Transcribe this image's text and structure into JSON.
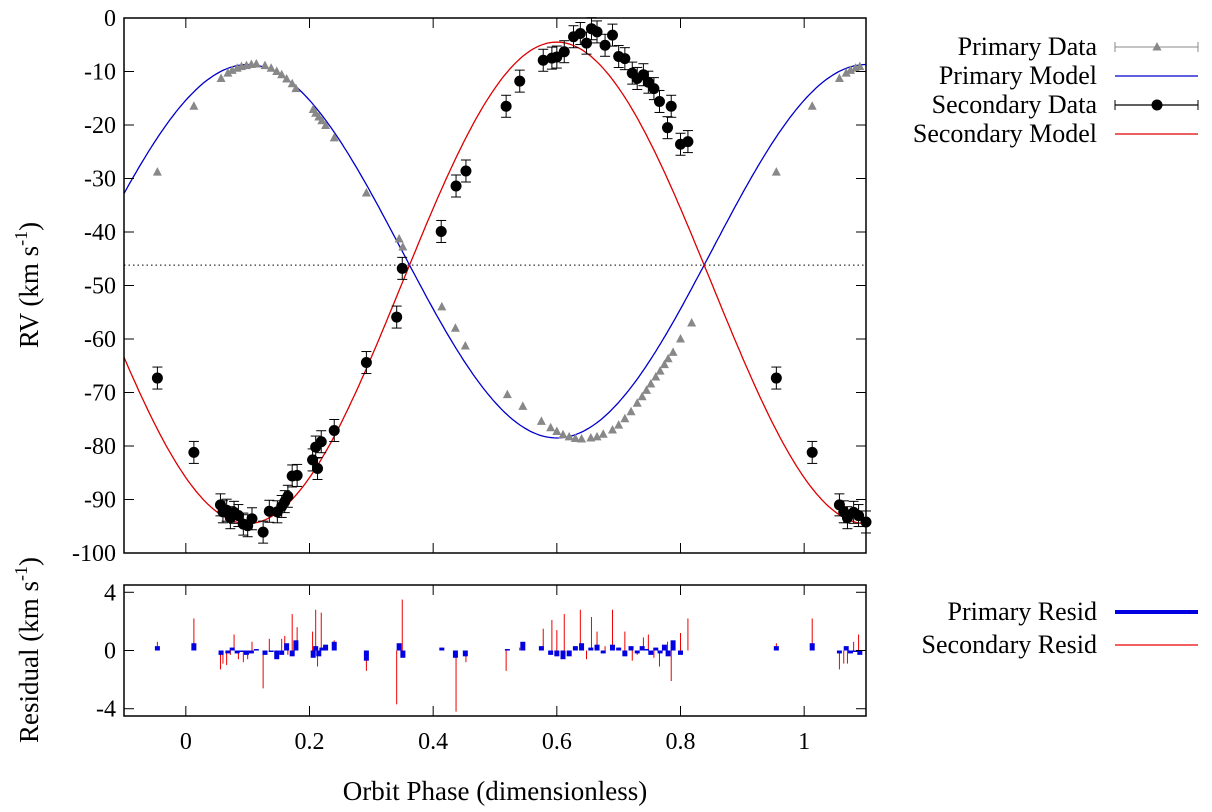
{
  "chart_data": [
    {
      "panel": "main",
      "type": "scatter",
      "ylabel": "RV (km s",
      "ylabel_sup": "-1",
      "ylabel_tail": ")",
      "xlim": [
        -0.1,
        1.1
      ],
      "ylim": [
        -100,
        0
      ],
      "yticks": [
        0,
        -10,
        -20,
        -30,
        -40,
        -50,
        -60,
        -70,
        -80,
        -90,
        -100
      ],
      "ytick_labels": [
        "0",
        "-10",
        "-20",
        "-30",
        "-40",
        "-50",
        "-60",
        "-70",
        "-80",
        "-90",
        "-100"
      ],
      "gamma": -46.2,
      "legend_position": "right-top",
      "legend": [
        {
          "label": "Primary Data",
          "kind": "primary-data"
        },
        {
          "label": "Primary Model",
          "kind": "primary-model"
        },
        {
          "label": "Secondary Data",
          "kind": "secondary-data"
        },
        {
          "label": "Secondary Model",
          "kind": "secondary-model"
        }
      ],
      "primary_model": {
        "gamma": -43.6,
        "K": 34.9,
        "phase_of_max": 0.1
      },
      "secondary_model": {
        "gamma": -49.5,
        "K": 45.0,
        "phase_of_max": 0.6
      },
      "series": [
        {
          "name": "Primary Data",
          "marker": "triangle",
          "color": "#888888",
          "x": [
            -0.046,
            0.013,
            0.057,
            0.068,
            0.075,
            0.083,
            0.09,
            0.098,
            0.106,
            0.114,
            0.128,
            0.138,
            0.147,
            0.155,
            0.163,
            0.172,
            0.178,
            0.206,
            0.21,
            0.215,
            0.22,
            0.226,
            0.24,
            0.292,
            0.345,
            0.351,
            0.414,
            0.436,
            0.452,
            0.52,
            0.545,
            0.575,
            0.59,
            0.6,
            0.61,
            0.62,
            0.63,
            0.64,
            0.655,
            0.665,
            0.675,
            0.69,
            0.7,
            0.71,
            0.72,
            0.73,
            0.738,
            0.745,
            0.752,
            0.76,
            0.767,
            0.774,
            0.78,
            0.788,
            0.8,
            0.818,
            0.955,
            1.013,
            1.057,
            1.068,
            1.075,
            1.083,
            1.09
          ],
          "y": [
            -28.8,
            -16.5,
            -11.3,
            -10.3,
            -9.8,
            -9.4,
            -9.1,
            -8.9,
            -8.7,
            -8.6,
            -8.9,
            -9.4,
            -10.0,
            -10.6,
            -11.4,
            -12.3,
            -13.2,
            -17.1,
            -17.8,
            -18.5,
            -19.2,
            -20.1,
            -22.4,
            -32.7,
            -41.3,
            -42.8,
            -54.0,
            -58.0,
            -61.3,
            -70.4,
            -72.6,
            -75.4,
            -76.6,
            -77.3,
            -77.9,
            -78.3,
            -78.6,
            -78.7,
            -78.5,
            -78.3,
            -77.8,
            -77.0,
            -76.1,
            -74.9,
            -73.6,
            -72.0,
            -70.8,
            -69.6,
            -68.4,
            -67.1,
            -66.0,
            -64.8,
            -63.7,
            -62.5,
            -60.0,
            -57.0,
            -28.8,
            -16.5,
            -11.3,
            -10.3,
            -9.8,
            -9.4,
            -9.1
          ]
        },
        {
          "name": "Secondary Data",
          "marker": "circle",
          "color": "#000000",
          "x": [
            -0.046,
            0.013,
            0.056,
            0.06,
            0.066,
            0.072,
            0.078,
            0.085,
            0.093,
            0.1,
            0.107,
            0.125,
            0.135,
            0.148,
            0.155,
            0.16,
            0.165,
            0.172,
            0.18,
            0.205,
            0.21,
            0.213,
            0.219,
            0.24,
            0.292,
            0.341,
            0.35,
            0.413,
            0.437,
            0.453,
            0.518,
            0.54,
            0.578,
            0.592,
            0.6,
            0.612,
            0.627,
            0.638,
            0.648,
            0.656,
            0.665,
            0.678,
            0.69,
            0.7,
            0.71,
            0.722,
            0.73,
            0.74,
            0.748,
            0.757,
            0.766,
            0.779,
            0.785,
            0.8,
            0.812,
            0.955,
            1.013,
            1.057,
            1.064,
            1.07,
            1.08,
            1.088,
            1.1
          ],
          "y": [
            -67.3,
            -81.2,
            -91.0,
            -92.3,
            -92.0,
            -93.4,
            -92.4,
            -93.0,
            -94.6,
            -94.9,
            -93.6,
            -96.1,
            -92.2,
            -92.3,
            -91.3,
            -90.4,
            -89.4,
            -85.6,
            -85.5,
            -82.6,
            -80.2,
            -84.2,
            -79.2,
            -77.1,
            -64.4,
            -55.9,
            -46.8,
            -39.9,
            -31.4,
            -28.6,
            -16.5,
            -11.8,
            -7.9,
            -7.5,
            -7.3,
            -6.3,
            -3.5,
            -2.9,
            -4.7,
            -2.0,
            -2.6,
            -5.1,
            -3.2,
            -7.2,
            -7.6,
            -10.3,
            -11.3,
            -10.6,
            -12.0,
            -13.2,
            -15.6,
            -20.5,
            -16.5,
            -23.6,
            -23.1,
            -67.3,
            -81.2,
            -91.0,
            -92.3,
            -93.4,
            -92.4,
            -93.0,
            -94.2
          ]
        }
      ]
    },
    {
      "panel": "residuals",
      "type": "bar",
      "xlabel": "Orbit Phase (dimensionless)",
      "ylabel": "Residual (km s",
      "ylabel_sup": "-1",
      "ylabel_tail": ")",
      "xlim": [
        -0.1,
        1.1
      ],
      "ylim": [
        -4.5,
        4.5
      ],
      "yticks": [
        4,
        0,
        -4
      ],
      "ytick_labels": [
        "4",
        "0",
        "-4"
      ],
      "xticks": [
        0,
        0.2,
        0.4,
        0.6,
        0.8,
        1
      ],
      "xtick_labels": [
        "0",
        "0.2",
        "0.4",
        "0.6",
        "0.8",
        "1"
      ],
      "legend": [
        {
          "label": "Primary Resid",
          "kind": "primary-resid"
        },
        {
          "label": "Secondary Resid",
          "kind": "secondary-resid"
        }
      ],
      "series": [
        {
          "name": "Primary Resid",
          "color": "#0000e0",
          "x": [
            -0.046,
            0.013,
            0.057,
            0.068,
            0.075,
            0.083,
            0.09,
            0.098,
            0.106,
            0.114,
            0.128,
            0.138,
            0.147,
            0.155,
            0.163,
            0.172,
            0.178,
            0.206,
            0.21,
            0.215,
            0.22,
            0.226,
            0.24,
            0.292,
            0.345,
            0.351,
            0.414,
            0.436,
            0.452,
            0.52,
            0.545,
            0.575,
            0.59,
            0.6,
            0.61,
            0.62,
            0.63,
            0.64,
            0.655,
            0.665,
            0.675,
            0.69,
            0.7,
            0.71,
            0.72,
            0.73,
            0.738,
            0.745,
            0.752,
            0.76,
            0.767,
            0.774,
            0.78,
            0.788,
            0.8,
            0.955,
            1.013,
            1.057,
            1.068,
            1.075,
            1.083,
            1.09
          ],
          "y": [
            0.3,
            0.5,
            -0.3,
            -0.2,
            0.2,
            -0.2,
            -0.1,
            -0.3,
            -0.2,
            0.1,
            -0.3,
            -0.1,
            -0.6,
            -0.3,
            0.5,
            -0.4,
            0.7,
            -0.5,
            0.3,
            -0.4,
            0.2,
            0.4,
            0.6,
            -0.7,
            0.5,
            -0.5,
            0.2,
            -0.5,
            -0.4,
            0.1,
            0.6,
            0.3,
            -0.3,
            -0.4,
            -0.6,
            -0.4,
            0.3,
            0.5,
            0.2,
            0.4,
            -0.2,
            0.4,
            0.2,
            -0.4,
            0.3,
            -0.2,
            0.3,
            0.1,
            -0.3,
            0.2,
            -0.2,
            0.4,
            -0.4,
            0.7,
            -0.3,
            0.3,
            0.5,
            -0.2,
            0.3,
            -0.2,
            -0.1,
            -0.3
          ]
        },
        {
          "name": "Secondary Resid",
          "color": "#ee0000",
          "x": [
            -0.046,
            0.013,
            0.056,
            0.06,
            0.066,
            0.072,
            0.078,
            0.085,
            0.093,
            0.1,
            0.107,
            0.125,
            0.135,
            0.148,
            0.155,
            0.16,
            0.165,
            0.172,
            0.18,
            0.205,
            0.21,
            0.213,
            0.219,
            0.24,
            0.292,
            0.341,
            0.35,
            0.413,
            0.437,
            0.453,
            0.518,
            0.54,
            0.578,
            0.592,
            0.6,
            0.612,
            0.627,
            0.638,
            0.648,
            0.656,
            0.665,
            0.678,
            0.69,
            0.7,
            0.71,
            0.722,
            0.73,
            0.74,
            0.748,
            0.757,
            0.766,
            0.779,
            0.785,
            0.8,
            0.812,
            0.955,
            1.013,
            1.057,
            1.064,
            1.07,
            1.08,
            1.088,
            1.1
          ],
          "y": [
            0.6,
            2.2,
            -1.3,
            -0.9,
            -1.0,
            -0.3,
            1.1,
            -0.6,
            -0.8,
            -0.6,
            0.6,
            -2.6,
            0.8,
            -0.4,
            0.8,
            1.0,
            -0.3,
            2.5,
            1.6,
            1.3,
            2.8,
            -1.1,
            2.6,
            0.7,
            -1.4,
            -3.7,
            3.5,
            0.1,
            -4.2,
            -0.8,
            -1.4,
            0.2,
            1.5,
            2.1,
            1.4,
            2.5,
            0.2,
            2.8,
            -0.6,
            2.3,
            1.3,
            0.3,
            2.8,
            0.2,
            1.3,
            -0.7,
            -0.3,
            0.9,
            1.1,
            -0.5,
            -1.1,
            0.6,
            -2.1,
            1.2,
            2.2,
            0.5,
            2.2,
            -1.3,
            -0.9,
            -0.9,
            0.6,
            1.1,
            -0.6
          ]
        }
      ]
    }
  ]
}
